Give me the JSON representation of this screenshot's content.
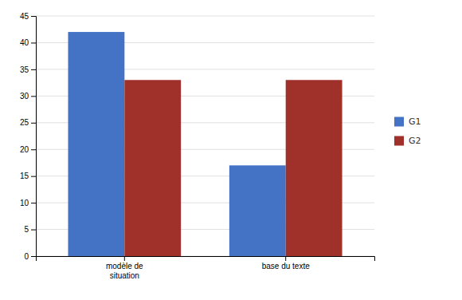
{
  "chart_data": {
    "type": "bar",
    "categories": [
      "modèle de\nsituation",
      "base du texte"
    ],
    "series": [
      {
        "name": "G1",
        "color": "#4472C4",
        "values": [
          42,
          17
        ]
      },
      {
        "name": "G2",
        "color": "#A0302A",
        "values": [
          33,
          33
        ]
      }
    ],
    "ylim": [
      0,
      45
    ],
    "yticks": [
      0,
      5,
      10,
      15,
      20,
      25,
      30,
      35,
      40,
      45
    ],
    "grid": true,
    "legend": "right"
  }
}
